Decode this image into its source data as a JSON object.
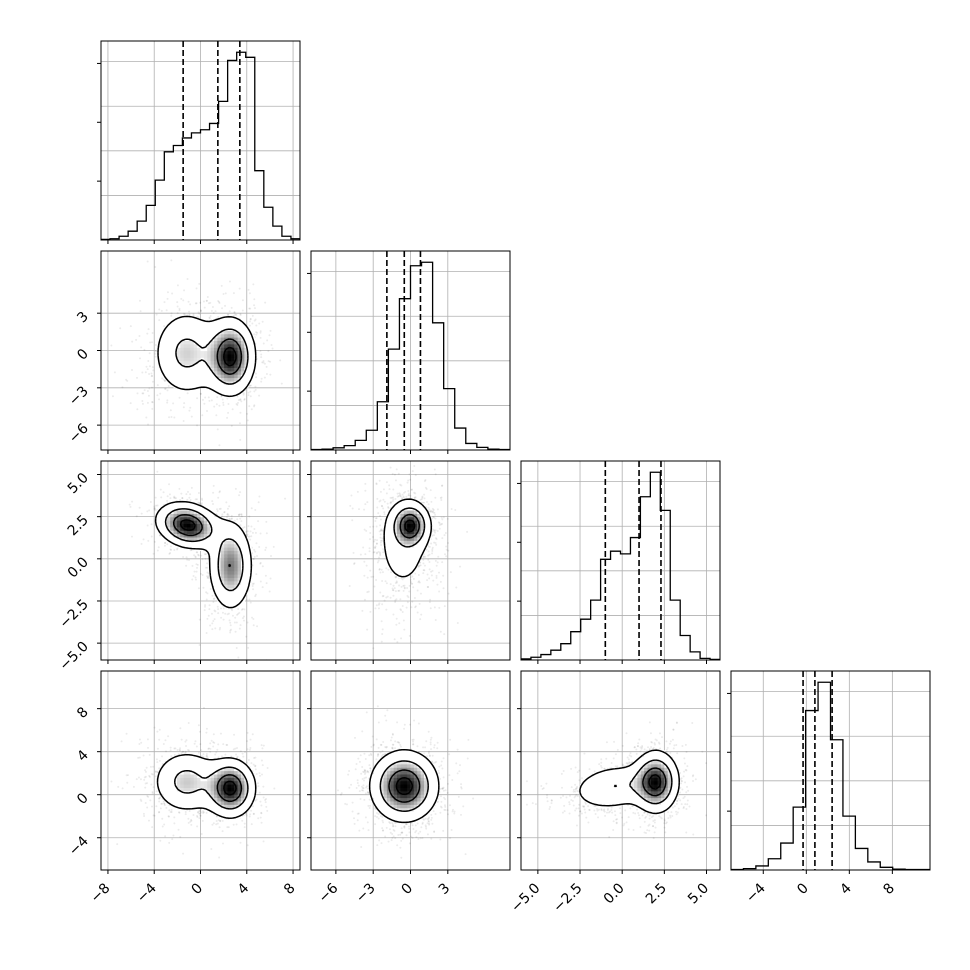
{
  "chart_data": {
    "type": "corner",
    "title": "",
    "parameters": [
      {
        "range": [
          -8.6,
          8.6
        ],
        "ticks": [
          -8,
          -4,
          0,
          4,
          8
        ],
        "tick_labels": [
          "−8",
          "−4",
          "0",
          "4",
          "8"
        ],
        "quantiles": [
          -1.5,
          1.5,
          3.4
        ]
      },
      {
        "range": [
          -8.0,
          8.0
        ],
        "ticks": [
          -6,
          -3,
          0,
          3
        ],
        "tick_labels": [
          "−6",
          "−3",
          "0",
          "3"
        ],
        "quantiles": [
          -1.9,
          -0.5,
          0.8
        ]
      },
      {
        "range": [
          -6.0,
          5.8
        ],
        "ticks": [
          -5.0,
          -2.5,
          0.0,
          2.5,
          5.0
        ],
        "tick_labels": [
          "−5.0",
          "−2.5",
          "0.0",
          "2.5",
          "5.0"
        ],
        "quantiles": [
          -1.0,
          1.0,
          2.3
        ]
      },
      {
        "range": [
          -7.0,
          11.5
        ],
        "ticks": [
          -4,
          0,
          4,
          8
        ],
        "tick_labels": [
          "−4",
          "0",
          "4",
          "8"
        ],
        "quantiles": [
          -0.3,
          0.8,
          2.4
        ]
      }
    ],
    "marginals": [
      {
        "parameter": 0,
        "bin_edges": [
          -8.6,
          8.6
        ],
        "counts": [
          1,
          2,
          6,
          14,
          30,
          55,
          95,
          140,
          150,
          162,
          170,
          175,
          185,
          220,
          285,
          298,
          290,
          110,
          52,
          22,
          6,
          2
        ]
      },
      {
        "parameter": 1,
        "bin_edges": [
          -8.0,
          8.0
        ],
        "counts": [
          1,
          2,
          5,
          10,
          22,
          45,
          110,
          230,
          345,
          420,
          428,
          290,
          140,
          50,
          15,
          6,
          2,
          1
        ]
      },
      {
        "parameter": 2,
        "bin_edges": [
          -6.0,
          5.8
        ],
        "counts": [
          2,
          5,
          10,
          18,
          30,
          52,
          75,
          110,
          185,
          200,
          195,
          225,
          300,
          345,
          275,
          110,
          45,
          15,
          3,
          1
        ]
      },
      {
        "parameter": 3,
        "bin_edges": [
          -7.0,
          11.5
        ],
        "counts": [
          1,
          3,
          9,
          25,
          60,
          140,
          355,
          418,
          290,
          120,
          48,
          18,
          6,
          2,
          1,
          1
        ]
      }
    ],
    "joint_modes": [
      {
        "x": 0,
        "y": 1,
        "components": [
          {
            "mean": [
              -1.2,
              -0.2
            ],
            "sd": [
              1.6,
              1.9
            ],
            "rho": 0.0,
            "weight": 0.45
          },
          {
            "mean": [
              2.6,
              -0.5
            ],
            "sd": [
              1.1,
              1.6
            ],
            "rho": 0.0,
            "weight": 0.55
          }
        ]
      },
      {
        "x": 0,
        "y": 2,
        "components": [
          {
            "mean": [
              -1.1,
              2.0
            ],
            "sd": [
              1.4,
              0.7
            ],
            "rho": -0.2,
            "weight": 0.5
          },
          {
            "mean": [
              2.6,
              -0.4
            ],
            "sd": [
              1.0,
              1.4
            ],
            "rho": 0.0,
            "weight": 0.5
          }
        ]
      },
      {
        "x": 0,
        "y": 3,
        "components": [
          {
            "mean": [
              -1.2,
              1.2
            ],
            "sd": [
              1.6,
              1.6
            ],
            "rho": 0.0,
            "weight": 0.45
          },
          {
            "mean": [
              2.6,
              0.6
            ],
            "sd": [
              1.1,
              1.4
            ],
            "rho": 0.0,
            "weight": 0.55
          }
        ]
      },
      {
        "x": 1,
        "y": 2,
        "components": [
          {
            "mean": [
              -0.6,
              0.8
            ],
            "sd": [
              1.3,
              1.7
            ],
            "rho": 0.0,
            "weight": 0.55
          },
          {
            "mean": [
              0.0,
              2.0
            ],
            "sd": [
              0.8,
              0.7
            ],
            "rho": 0.0,
            "weight": 0.45
          }
        ]
      },
      {
        "x": 1,
        "y": 3,
        "components": [
          {
            "mean": [
              -0.5,
              0.8
            ],
            "sd": [
              1.4,
              1.7
            ],
            "rho": 0.0,
            "weight": 1.0
          }
        ]
      },
      {
        "x": 2,
        "y": 3,
        "components": [
          {
            "mean": [
              -0.5,
              0.7
            ],
            "sd": [
              1.4,
              1.2
            ],
            "rho": 0.2,
            "weight": 0.4
          },
          {
            "mean": [
              2.0,
              1.2
            ],
            "sd": [
              0.7,
              1.5
            ],
            "rho": 0.0,
            "weight": 0.6
          }
        ]
      }
    ],
    "contour_levels": [
      0.5,
      1.0,
      1.5,
      2.0
    ],
    "grid": true
  }
}
